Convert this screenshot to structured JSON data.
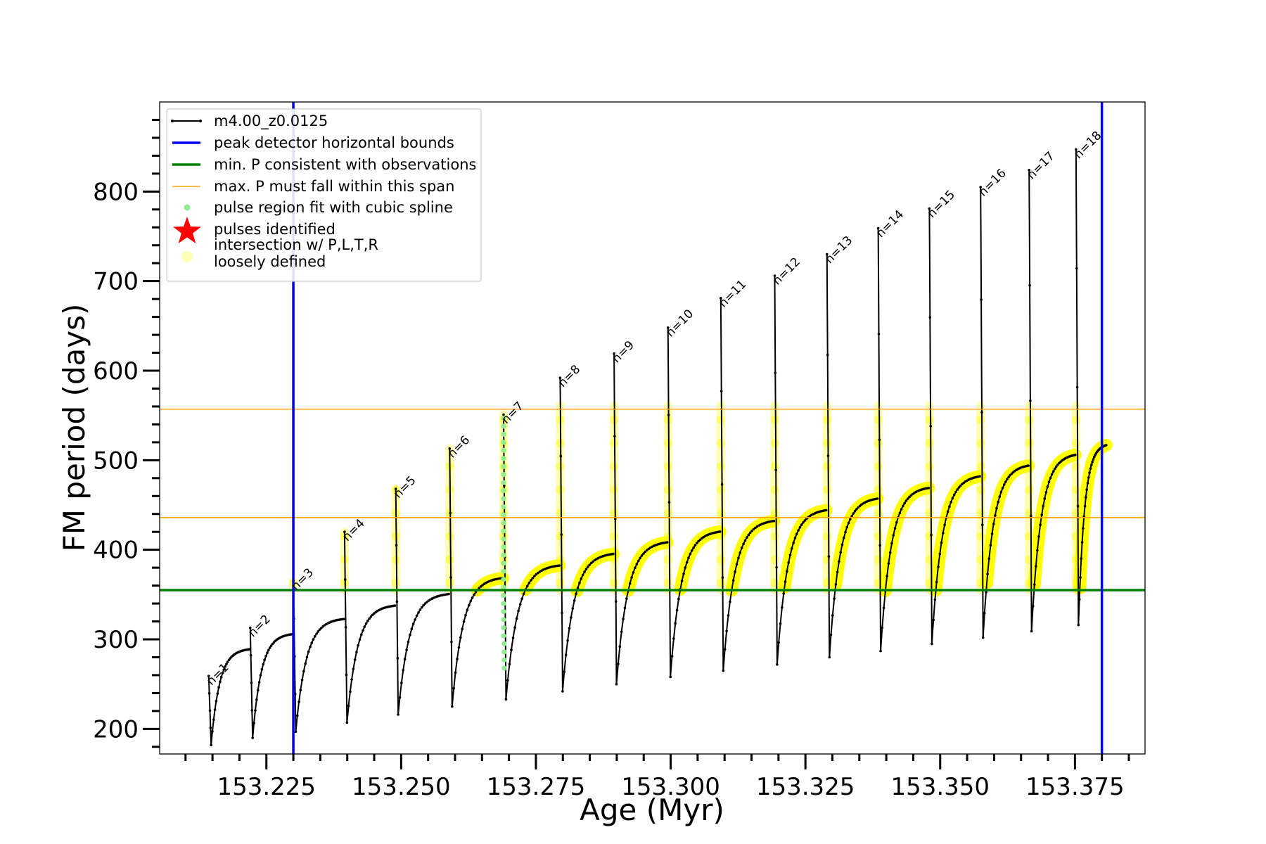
{
  "chart_data": {
    "type": "line",
    "title": "",
    "xlabel": "Age (Myr)",
    "ylabel": "FM period (days)",
    "xlim": [
      153.2052,
      153.388
    ],
    "ylim": [
      172,
      900
    ],
    "xticks_major": [
      153.225,
      153.25,
      153.275,
      153.3,
      153.325,
      153.35,
      153.375
    ],
    "xtick_labels": [
      "153.225",
      "153.250",
      "153.275",
      "153.300",
      "153.325",
      "153.350",
      "153.375"
    ],
    "yticks_major": [
      200,
      300,
      400,
      500,
      600,
      700,
      800
    ],
    "ytick_labels": [
      "200",
      "300",
      "400",
      "500",
      "600",
      "700",
      "800"
    ],
    "legend": {
      "position": "upper-left",
      "entries": [
        {
          "label": "m4.00_z0.0125",
          "style": "line-dot",
          "color": "#000000"
        },
        {
          "label": "peak detector horizontal bounds",
          "style": "line",
          "color": "#0000ff"
        },
        {
          "label": "min. P consistent with observations",
          "style": "line",
          "color": "#008000"
        },
        {
          "label": "max. P must fall within this span",
          "style": "thin-line",
          "color": "#ffa500"
        },
        {
          "label": "pulse region fit with cubic spline",
          "style": "dot",
          "color": "#90ee90"
        },
        {
          "label": "pulses identified",
          "style": "star",
          "color": "#ff0000"
        },
        {
          "label": "intersection w/ P,L,T,R\nloosely defined",
          "style": "big-dot",
          "color": "#ffffa0"
        }
      ]
    },
    "vertical_lines": {
      "color": "#0000ff",
      "x": [
        153.23,
        153.38
      ]
    },
    "min_period_line": {
      "color": "#008000",
      "y": 355
    },
    "max_period_span": {
      "color": "#ffa500",
      "y": [
        436,
        557
      ]
    },
    "colors": {
      "track": "#000000",
      "highlight": "#ffff00",
      "spline": "#90ee90",
      "halo": "#ffffa0"
    },
    "series": [
      {
        "name": "m4.00_z0.0125",
        "pulses": [
          {
            "label": "n=1",
            "x": 153.2143,
            "peak": 259,
            "min": 182,
            "end": 290
          },
          {
            "label": "n=2",
            "x": 153.222,
            "peak": 313,
            "min": 190,
            "end": 307
          },
          {
            "label": "n=3",
            "x": 153.23,
            "peak": 365,
            "min": 197,
            "end": 324
          },
          {
            "label": "n=4",
            "x": 153.2395,
            "peak": 420,
            "min": 207,
            "end": 339
          },
          {
            "label": "n=5",
            "x": 153.249,
            "peak": 468,
            "min": 216,
            "end": 352
          },
          {
            "label": "n=6",
            "x": 153.259,
            "peak": 513,
            "min": 225,
            "end": 370
          },
          {
            "label": "n=7",
            "x": 153.269,
            "peak": 551,
            "min": 233,
            "end": 384
          },
          {
            "label": "n=8",
            "x": 153.2795,
            "peak": 592,
            "min": 242,
            "end": 397
          },
          {
            "label": "n=9",
            "x": 153.2895,
            "peak": 619,
            "min": 250,
            "end": 410
          },
          {
            "label": "n=10",
            "x": 153.2995,
            "peak": 648,
            "min": 258,
            "end": 422
          },
          {
            "label": "n=11",
            "x": 153.3093,
            "peak": 681,
            "min": 265,
            "end": 434
          },
          {
            "label": "n=12",
            "x": 153.3193,
            "peak": 706,
            "min": 272,
            "end": 446
          },
          {
            "label": "n=13",
            "x": 153.329,
            "peak": 730,
            "min": 280,
            "end": 459
          },
          {
            "label": "n=14",
            "x": 153.3385,
            "peak": 759,
            "min": 287,
            "end": 471
          },
          {
            "label": "n=15",
            "x": 153.348,
            "peak": 781,
            "min": 295,
            "end": 484
          },
          {
            "label": "n=16",
            "x": 153.3575,
            "peak": 805,
            "min": 302,
            "end": 496
          },
          {
            "label": "n=17",
            "x": 153.3665,
            "peak": 824,
            "min": 309,
            "end": 508
          },
          {
            "label": "n=18",
            "x": 153.3752,
            "peak": 847,
            "min": 316,
            "end": 519
          }
        ],
        "final_x": 153.3808
      }
    ]
  }
}
